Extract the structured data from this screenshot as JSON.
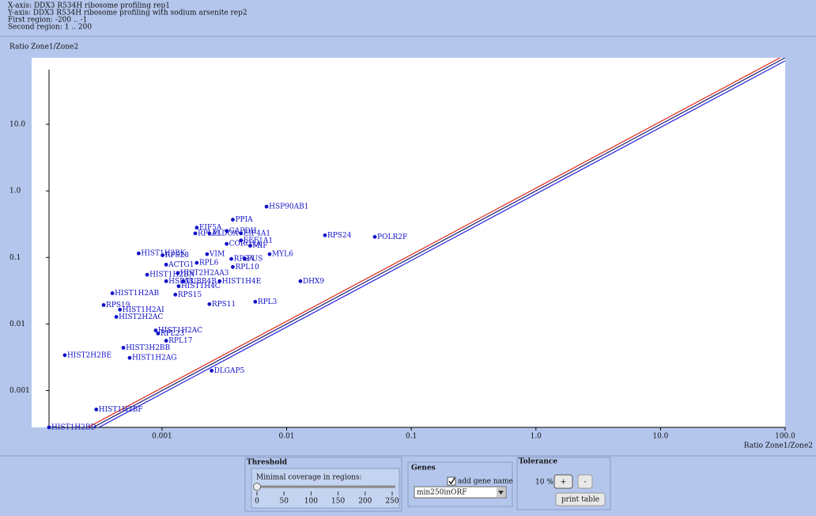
{
  "header": {
    "lines": [
      "X-axis: DDX3 R534H ribosome profiling rep1",
      "Y-axis: DDX3 R534H ribosome profiling with sodium arsenite rep2",
      "First region: -200 .. -1",
      "Second region: 1 .. 200"
    ]
  },
  "chart_data": {
    "type": "scatter",
    "y_label": "Ratio Zone1/Zone2",
    "x_label": "Ratio Zone1/Zone2",
    "log_x": true,
    "log_y": true,
    "color": "#1010c8",
    "line_colors": [
      "#e02818",
      "#1a1a70",
      "#2020e0"
    ],
    "xlim": [
      0.000124,
      100
    ],
    "ylim": [
      0.00028,
      100
    ],
    "xticks": [
      0.001,
      0.01,
      0.1,
      {
        "value": 1,
        "label": "1.0"
      },
      {
        "value": 10,
        "label": "10.0"
      },
      {
        "value": 100,
        "label": "100.0"
      }
    ],
    "yticks": [
      0.001,
      0.01,
      0.1,
      {
        "value": 1,
        "label": "1.0"
      },
      {
        "value": 10,
        "label": "10.0"
      }
    ],
    "point_labels": [
      "HSP90AB1",
      "PPIA",
      "EIF5A",
      "GAPDH",
      "RPLP1",
      "ALDOA",
      "EIF4A1",
      "EEF1A1",
      "CORO1A",
      "MIF",
      "RPS24",
      "POLR2F",
      "MYL6",
      "HIST1H2BK",
      "RPS28",
      "VIM",
      "FUS",
      "RPSA",
      "RPL6",
      "ACTG1",
      "RPL10",
      "HIST2H2AA3",
      "HIST1H2BN",
      "HSPA8",
      "TUBB4B",
      "HIST1H4E",
      "HIST1H4C",
      "DHX9",
      "HIST1H2AB",
      "RPS15",
      "RPS11",
      "RPL3",
      "RPS19",
      "HIST1H2AI",
      "HIST2H2AC",
      "HIST1H2AC",
      "RPL23",
      "RPL17",
      "HIST3H2BB",
      "HIST2H2BE",
      "HIST1H2AG",
      "DLGAP5",
      "HIST1H2BF",
      "HIST1H2BD"
    ],
    "x": [
      0.0069,
      0.0037,
      0.0019,
      0.0033,
      0.00185,
      0.0024,
      0.0043,
      0.0043,
      0.0033,
      0.0051,
      0.0203,
      0.051,
      0.0073,
      0.00065,
      0.00101,
      0.0023,
      0.0046,
      0.0036,
      0.0019,
      0.00108,
      0.0037,
      0.00134,
      0.00076,
      0.00108,
      0.00148,
      0.0029,
      0.00136,
      0.0129,
      0.0004,
      0.00128,
      0.0024,
      0.0056,
      0.00034,
      0.00046,
      0.00043,
      0.00089,
      0.00093,
      0.00108,
      0.00049,
      0.000166,
      0.00055,
      0.0025,
      0.000297,
      0.000124
    ],
    "y": [
      0.58,
      0.37,
      0.28,
      0.25,
      0.23,
      0.23,
      0.23,
      0.18,
      0.16,
      0.15,
      0.215,
      0.204,
      0.112,
      0.115,
      0.108,
      0.112,
      0.095,
      0.095,
      0.083,
      0.078,
      0.072,
      0.058,
      0.055,
      0.044,
      0.044,
      0.044,
      0.037,
      0.044,
      0.029,
      0.0276,
      0.0199,
      0.0216,
      0.0193,
      0.0164,
      0.0128,
      0.008,
      0.0072,
      0.0056,
      0.0044,
      0.0034,
      0.0031,
      0.00199,
      0.00052,
      0.00028
    ]
  },
  "controls": {
    "threshold": {
      "title": "Threshold",
      "label": "Minimal coverage in regions:",
      "ticks": [
        0,
        50,
        100,
        150,
        200,
        250
      ],
      "value": 0
    },
    "genes": {
      "title": "Genes",
      "checkbox": "add gene name",
      "checked": true,
      "select": "min250inORF"
    },
    "tolerance": {
      "title": "Tolerance",
      "value": {
        "value": 10,
        "label": "10 %"
      },
      "plus": "+",
      "minus": "-",
      "print": "print table"
    }
  }
}
